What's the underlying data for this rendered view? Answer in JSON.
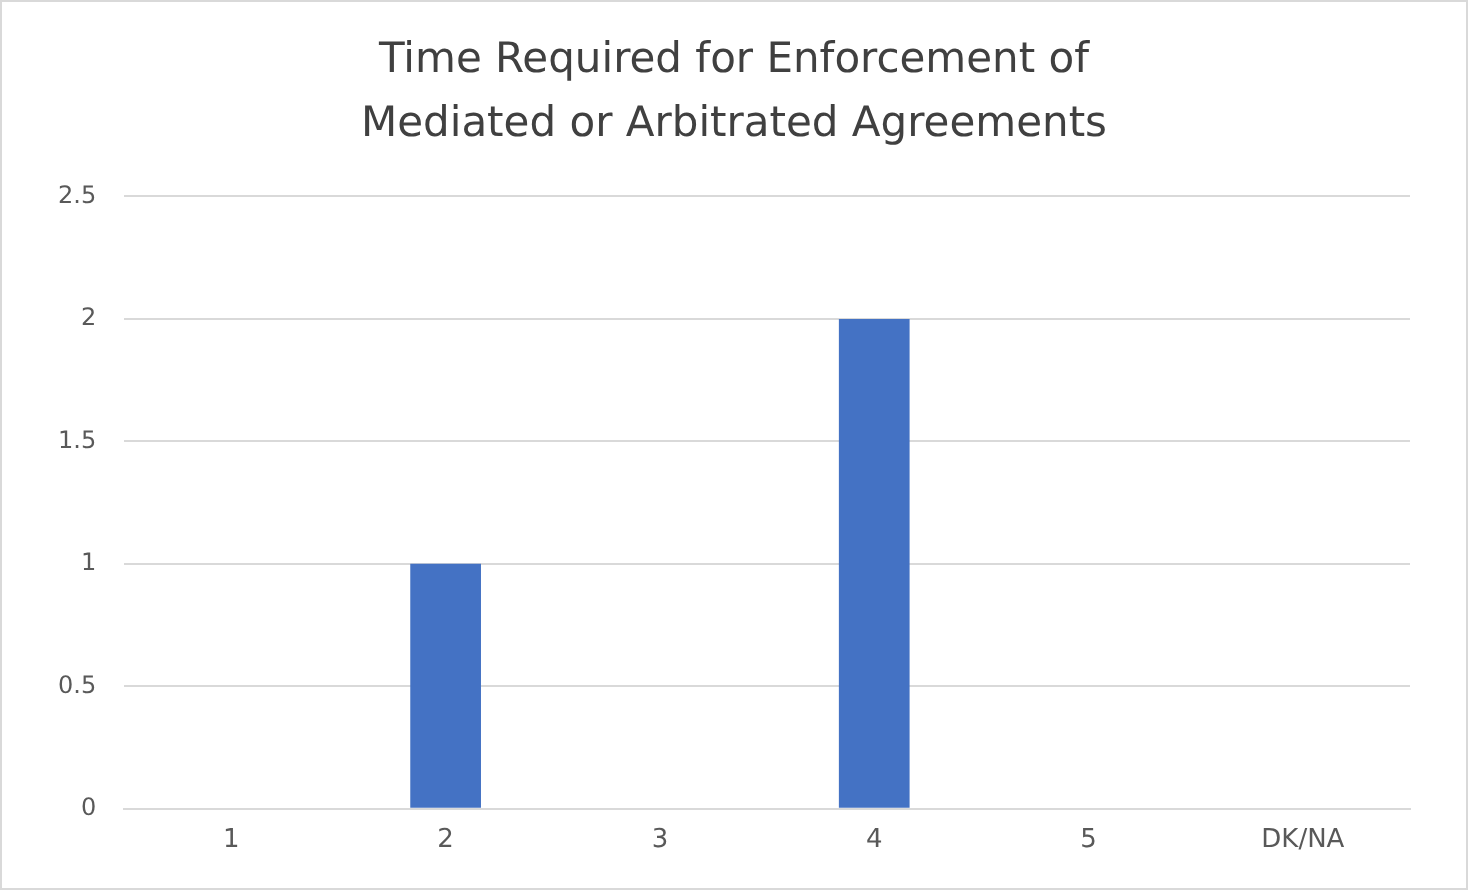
{
  "chart_data": {
    "type": "bar",
    "title": "Time Required for Enforcement of Mediated or Arbitrated Agreements",
    "categories": [
      "1",
      "2",
      "3",
      "4",
      "5",
      "DK/NA"
    ],
    "values": [
      0,
      1,
      0,
      2,
      0,
      0
    ],
    "color": "#4472c4",
    "ylim": [
      0,
      2.5
    ],
    "yticks": [
      0,
      0.5,
      1,
      1.5,
      2,
      2.5
    ],
    "grid": "y"
  }
}
